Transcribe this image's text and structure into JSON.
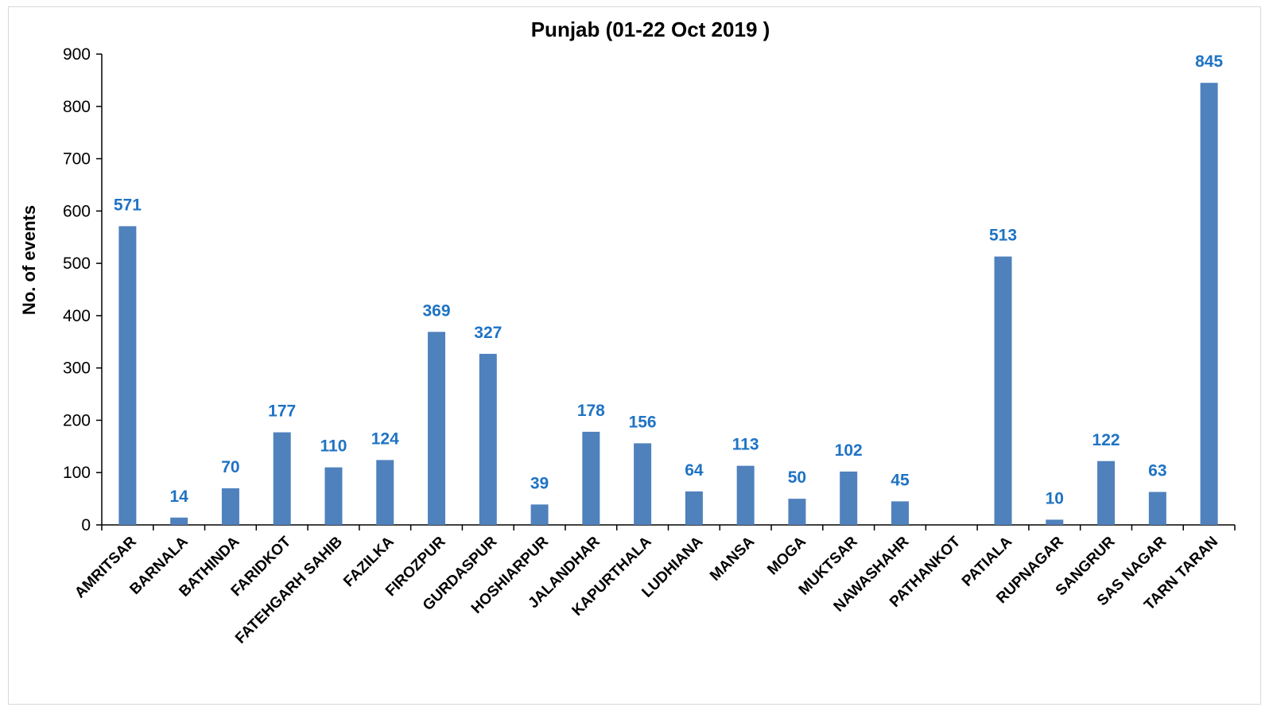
{
  "chart_data": {
    "type": "bar",
    "title": "Punjab (01-22 Oct 2019 )",
    "xlabel": "",
    "ylabel": "No. of events",
    "ylim": [
      0,
      900
    ],
    "yticks": [
      0,
      100,
      200,
      300,
      400,
      500,
      600,
      700,
      800,
      900
    ],
    "grid": false,
    "legend": "none",
    "bar_color": "#4f81bd",
    "label_color": "#1f73c4",
    "categories": [
      "AMRITSAR",
      "BARNALA",
      "BATHINDA",
      "FARIDKOT",
      "FATEHGARH SAHIB",
      "FAZILKA",
      "FIROZPUR",
      "GURDASPUR",
      "HOSHIARPUR",
      "JALANDHAR",
      "KAPURTHALA",
      "LUDHIANA",
      "MANSA",
      "MOGA",
      "MUKTSAR",
      "NAWASHAHR",
      "PATHANKOT",
      "PATIALA",
      "RUPNAGAR",
      "SANGRUR",
      "SAS NAGAR",
      "TARN TARAN"
    ],
    "values": [
      571,
      14,
      70,
      177,
      110,
      124,
      369,
      327,
      39,
      178,
      156,
      64,
      113,
      50,
      102,
      45,
      null,
      513,
      10,
      122,
      63,
      845
    ]
  }
}
